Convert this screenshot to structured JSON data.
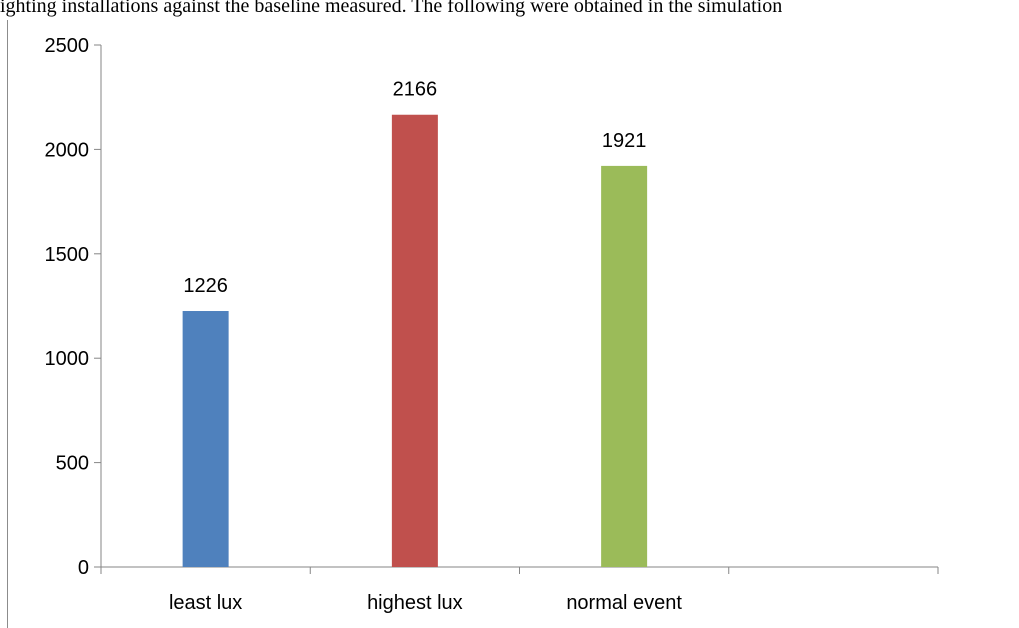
{
  "document": {
    "text_line": "ighting installations against the baseline measured. The following were obtained in the simulation"
  },
  "colors": {
    "axis": "#868686",
    "bar_least_lux": "#4f81bd",
    "bar_highest_lux": "#c0504d",
    "bar_normal_event": "#9bbb59"
  },
  "chart_data": {
    "type": "bar",
    "title": "",
    "xlabel": "",
    "ylabel": "",
    "categories": [
      "least lux",
      "highest lux",
      "normal event"
    ],
    "values": [
      1226,
      2166,
      1921
    ],
    "data_labels": [
      "1226",
      "2166",
      "1921"
    ],
    "bar_colors": [
      "#4f81bd",
      "#c0504d",
      "#9bbb59"
    ],
    "ylim": [
      0,
      2500
    ],
    "yticks": [
      0,
      500,
      1000,
      1500,
      2000,
      2500
    ],
    "category_slots": 4,
    "grid": false,
    "legend": "none"
  }
}
